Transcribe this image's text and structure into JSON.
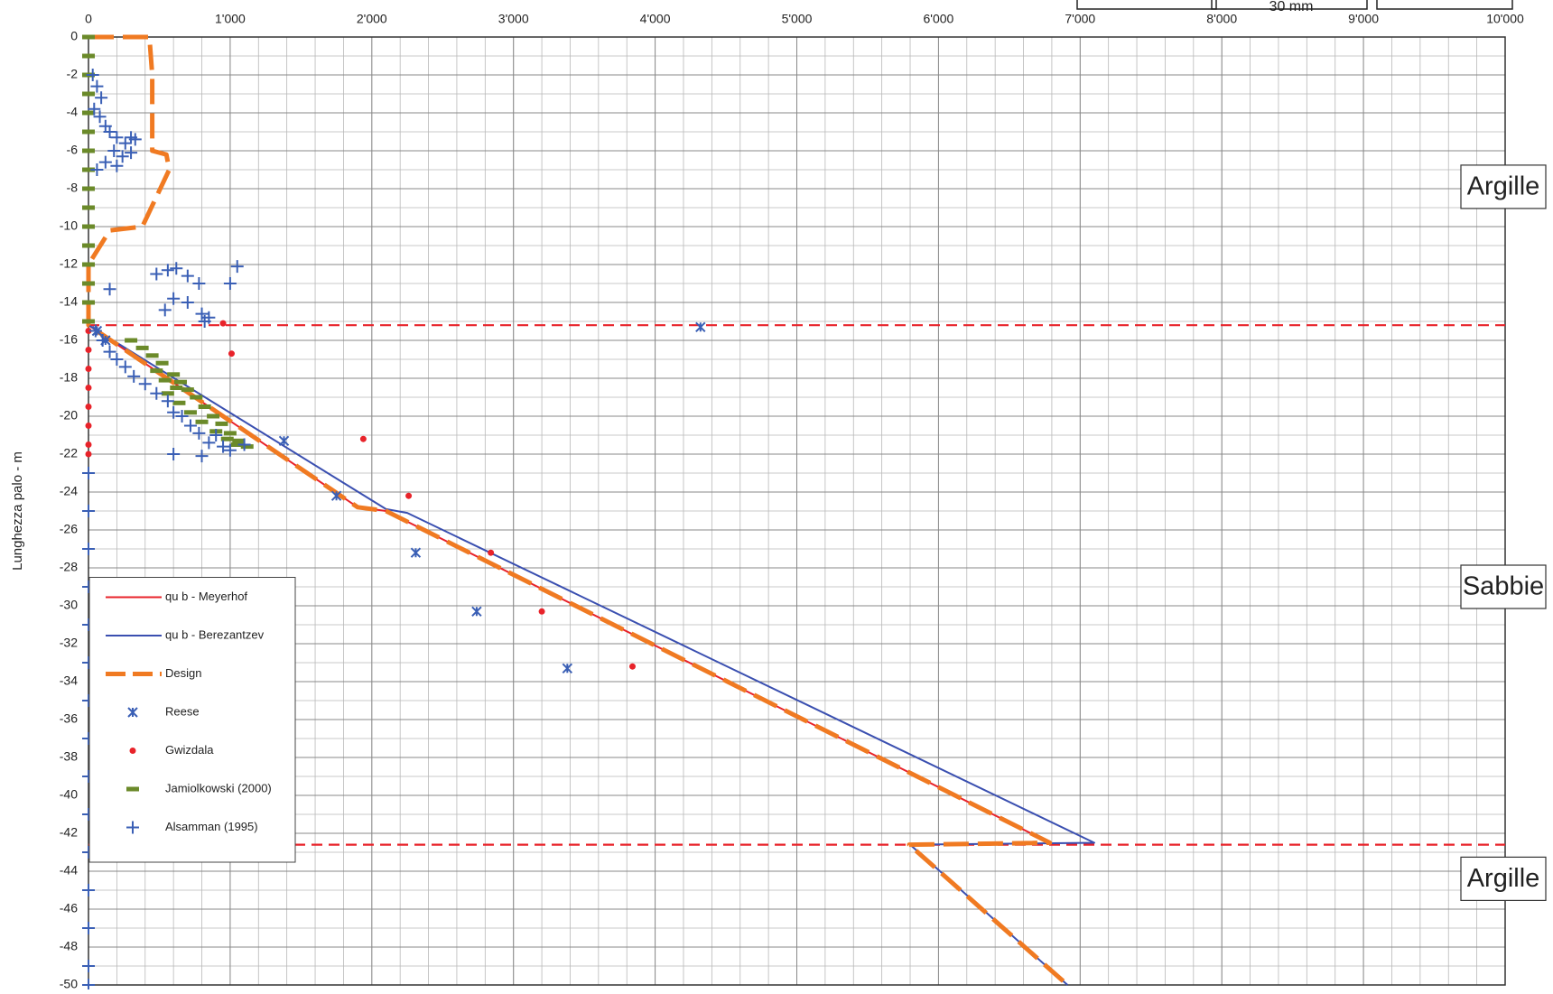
{
  "chart_data": {
    "type": "scatter",
    "y_label": "Lunghezza palo - m",
    "xlim": [
      0,
      10000
    ],
    "ylim": [
      0,
      -50
    ],
    "xticks": [
      0,
      {
        "value": 1000,
        "label": "1'000"
      },
      {
        "value": 2000,
        "label": "2'000"
      },
      {
        "value": 3000,
        "label": "3'000"
      },
      {
        "value": 4000,
        "label": "4'000"
      },
      {
        "value": 5000,
        "label": "5'000"
      },
      {
        "value": 6000,
        "label": "6'000"
      },
      {
        "value": 7000,
        "label": "7'000"
      },
      {
        "value": 8000,
        "label": "8'000"
      },
      {
        "value": 9000,
        "label": "9'000"
      },
      {
        "value": 10000,
        "label": "10'000"
      }
    ],
    "yticks": [
      0,
      -2,
      -4,
      -6,
      -8,
      -10,
      -12,
      -14,
      -16,
      -18,
      -20,
      -22,
      -24,
      -26,
      -28,
      -30,
      -32,
      -34,
      -36,
      -38,
      -40,
      -42,
      -44,
      -46,
      -48,
      -50
    ],
    "grid": true,
    "minor_grid": {
      "x": 200,
      "y": 1
    },
    "legend": "lower left",
    "reference_lines": {
      "color": "#e8232a",
      "values": [
        -15.2,
        -42.6
      ]
    },
    "layer_labels": [
      {
        "text": "Argille",
        "y": -7.9
      },
      {
        "text": "Sabbie",
        "y": -29.0
      },
      {
        "text": "Argille",
        "y": -44.4
      }
    ],
    "annotations": [
      "30 mm"
    ],
    "series": [
      {
        "name": "qu b  - Meyerhof",
        "kind": "line",
        "color": "#e8232a",
        "x": [
          0,
          1900,
          2100,
          6786
        ],
        "values": [
          -15.2,
          -24.8,
          -25.0,
          -42.5
        ]
      },
      {
        "name": "qu b  - Berezantzev",
        "kind": "line",
        "color": "#3a4fb0",
        "x": [
          0,
          2100,
          2250,
          7100,
          5800,
          6911
        ],
        "values": [
          -15.2,
          -24.9,
          -25.1,
          -42.5,
          -42.6,
          -50
        ]
      },
      {
        "name": "Design",
        "kind": "dashed",
        "color": "#f07a22",
        "x": [
          0,
          430,
          450,
          450,
          550,
          570,
          380,
          150,
          0,
          0,
          1900,
          2100,
          6786,
          5793,
          6911
        ],
        "values": [
          0,
          0,
          -2,
          -6,
          -6.2,
          -7,
          -10,
          -10.2,
          -12,
          -15.2,
          -24.8,
          -25.0,
          -42.5,
          -42.6,
          -50
        ]
      },
      {
        "name": "Reese",
        "kind": "cross",
        "color": "#3a5fb5",
        "x": [
          4320,
          1380,
          1750,
          2310,
          2740,
          3380,
          60,
          120
        ],
        "values": [
          -15.3,
          -21.3,
          -24.2,
          -27.2,
          -30.3,
          -33.3,
          -15.5,
          -16.0
        ]
      },
      {
        "name": "Gwizdala",
        "kind": "dot",
        "color": "#e8232a",
        "x": [
          950,
          1010,
          1940,
          2260,
          2840,
          3200,
          3840,
          0,
          0,
          0,
          0,
          0,
          0,
          0,
          0
        ],
        "values": [
          -15.1,
          -16.7,
          -21.2,
          -24.2,
          -27.2,
          -30.3,
          -33.2,
          -15.5,
          -16.5,
          -17.5,
          -18.5,
          -19.5,
          -20.5,
          -21.5,
          -22.0
        ]
      },
      {
        "name": "Jamiolkowski (2000)",
        "kind": "dash",
        "color": "#6b8a2a",
        "x": [
          0,
          0,
          0,
          0,
          0,
          0,
          0,
          0,
          0,
          0,
          0,
          0,
          0,
          0,
          0,
          0,
          300,
          380,
          450,
          520,
          600,
          650,
          700,
          760,
          820,
          880,
          940,
          1000,
          1060,
          1120,
          560,
          640,
          720,
          800,
          900,
          980,
          1050,
          480,
          540,
          620
        ],
        "values": [
          0,
          -1,
          -2,
          -3,
          -4,
          -5,
          -6,
          -7,
          -8,
          -9,
          -10,
          -11,
          -12,
          -13,
          -14,
          -15,
          -16.0,
          -16.4,
          -16.8,
          -17.2,
          -17.8,
          -18.2,
          -18.6,
          -19.0,
          -19.5,
          -20.0,
          -20.4,
          -20.9,
          -21.3,
          -21.6,
          -18.8,
          -19.3,
          -19.8,
          -20.3,
          -20.8,
          -21.2,
          -21.5,
          -17.6,
          -18.1,
          -18.5
        ]
      },
      {
        "name": "Alsamman (1995)",
        "kind": "plus",
        "color": "#3a5fb5",
        "x": [
          30,
          60,
          90,
          40,
          80,
          120,
          150,
          200,
          260,
          300,
          330,
          180,
          240,
          120,
          60,
          200,
          300,
          480,
          560,
          620,
          700,
          780,
          850,
          1050,
          1000,
          600,
          700,
          800,
          150,
          540,
          820,
          50,
          100,
          150,
          200,
          260,
          320,
          400,
          480,
          560,
          600,
          660,
          720,
          780,
          850,
          900,
          950,
          1000,
          600,
          800,
          1100,
          0,
          0,
          0,
          0,
          0,
          0,
          0,
          0,
          0,
          0,
          0,
          0,
          0,
          0,
          0
        ],
        "values": [
          -2,
          -2.6,
          -3.2,
          -3.8,
          -4.2,
          -4.7,
          -5.0,
          -5.3,
          -5.6,
          -5.3,
          -5.4,
          -6.0,
          -6.3,
          -6.6,
          -7.0,
          -6.8,
          -6.1,
          -12.5,
          -12.3,
          -12.2,
          -12.6,
          -13.0,
          -14.8,
          -12.1,
          -13.0,
          -13.8,
          -14.0,
          -14.6,
          -13.3,
          -14.4,
          -15.0,
          -15.5,
          -16.0,
          -16.6,
          -17.0,
          -17.4,
          -17.9,
          -18.3,
          -18.8,
          -19.2,
          -19.8,
          -20.0,
          -20.5,
          -20.9,
          -21.4,
          -21.0,
          -21.6,
          -21.8,
          -22.0,
          -22.1,
          -21.5,
          -23,
          -25,
          -27,
          -29,
          -31,
          -33,
          -35,
          -37,
          -39,
          -41,
          -43,
          -45,
          -47,
          -49,
          -50
        ]
      }
    ]
  }
}
